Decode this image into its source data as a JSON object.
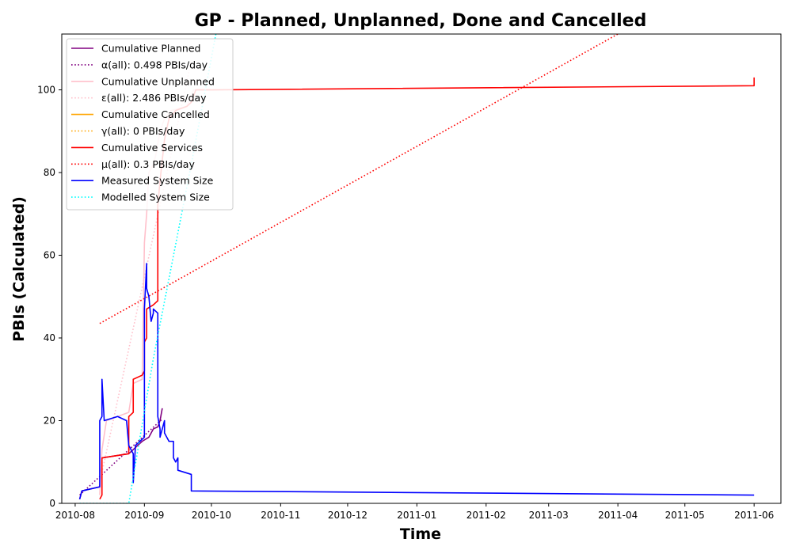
{
  "chart_data": {
    "type": "line",
    "title": "GP - Planned, Unplanned, Done  and Cancelled",
    "xlabel": "Time",
    "ylabel": "PBIs (Calculated)",
    "xlim": [
      "2010-07-26",
      "2011-06-13"
    ],
    "ylim": [
      0,
      113.5
    ],
    "x_ticks": [
      "2010-08",
      "2010-09",
      "2010-10",
      "2010-11",
      "2010-12",
      "2011-01",
      "2011-02",
      "2011-03",
      "2011-04",
      "2011-05",
      "2011-06"
    ],
    "y_ticks": [
      0,
      20,
      40,
      60,
      80,
      100
    ],
    "grid": false,
    "legend_position": "top-left",
    "series": [
      {
        "name": "Cumulative Planned",
        "style": "solid",
        "color": "#800080",
        "points": [
          [
            "2010-08-03",
            1
          ],
          [
            "2010-08-04",
            3
          ],
          [
            "2010-08-12",
            4
          ],
          [
            "2010-08-13",
            11
          ],
          [
            "2010-08-25",
            12
          ],
          [
            "2010-08-27",
            13
          ],
          [
            "2010-08-29",
            14
          ],
          [
            "2010-08-31",
            15
          ],
          [
            "2010-09-03",
            16
          ],
          [
            "2010-09-05",
            18
          ],
          [
            "2010-09-07",
            18.5
          ],
          [
            "2010-09-08",
            20
          ],
          [
            "2010-09-09",
            23
          ]
        ]
      },
      {
        "name": "α(all): 0.498 PBIs/day",
        "style": "dotted",
        "color": "#800080",
        "points": [
          [
            "2010-08-03",
            2
          ],
          [
            "2010-09-09",
            20.4
          ]
        ]
      },
      {
        "name": "Cumulative Unplanned",
        "style": "solid",
        "color": "#ffc0cb",
        "points": [
          [
            "2010-08-12",
            2
          ],
          [
            "2010-08-13",
            13
          ],
          [
            "2010-08-15",
            20
          ],
          [
            "2010-08-20",
            21
          ],
          [
            "2010-08-25",
            22
          ],
          [
            "2010-08-27",
            29
          ],
          [
            "2010-08-31",
            30
          ],
          [
            "2010-09-01",
            63
          ],
          [
            "2010-09-02",
            70
          ],
          [
            "2010-09-03",
            80
          ],
          [
            "2010-09-05",
            82
          ],
          [
            "2010-09-06",
            84
          ],
          [
            "2010-09-08",
            90
          ],
          [
            "2010-09-10",
            93
          ],
          [
            "2010-09-13",
            95
          ],
          [
            "2010-09-20",
            96
          ],
          [
            "2010-09-23",
            100
          ],
          [
            "2010-10-01",
            100
          ]
        ]
      },
      {
        "name": "ε(all): 2.486 PBIs/day",
        "style": "dotted",
        "color": "#ffc0cb",
        "points": [
          [
            "2010-08-12",
            5
          ],
          [
            "2010-09-22",
            107
          ]
        ]
      },
      {
        "name": "Cumulative Cancelled",
        "style": "solid",
        "color": "#ffa500",
        "points": []
      },
      {
        "name": "γ(all): 0 PBIs/day",
        "style": "dotted",
        "color": "#ffa500",
        "points": []
      },
      {
        "name": "Cumulative Services",
        "style": "solid",
        "color": "#ff0000",
        "points": [
          [
            "2010-08-12",
            1
          ],
          [
            "2010-08-13",
            2
          ],
          [
            "2010-08-13",
            11
          ],
          [
            "2010-08-25",
            12
          ],
          [
            "2010-08-25",
            21
          ],
          [
            "2010-08-27",
            22
          ],
          [
            "2010-08-27",
            30
          ],
          [
            "2010-08-31",
            31
          ],
          [
            "2010-09-01",
            32
          ],
          [
            "2010-09-01",
            39
          ],
          [
            "2010-09-02",
            40
          ],
          [
            "2010-09-02",
            47
          ],
          [
            "2010-09-05",
            48
          ],
          [
            "2010-09-07",
            49
          ],
          [
            "2010-09-07",
            72
          ],
          [
            "2010-09-08",
            78
          ],
          [
            "2010-09-10",
            88
          ],
          [
            "2010-09-12",
            93
          ],
          [
            "2010-09-15",
            95
          ],
          [
            "2010-09-20",
            96
          ],
          [
            "2010-09-22",
            97
          ],
          [
            "2010-09-24",
            100
          ],
          [
            "2010-10-01",
            100
          ],
          [
            "2011-06-01",
            101
          ],
          [
            "2011-06-01",
            103
          ]
        ]
      },
      {
        "name": "μ(all): 0.3 PBIs/day",
        "style": "dotted",
        "color": "#ff0000",
        "points": [
          [
            "2010-08-12",
            43.5
          ],
          [
            "2011-04-01",
            113.5
          ]
        ]
      },
      {
        "name": "Measured System Size",
        "style": "solid",
        "color": "#0000ff",
        "points": [
          [
            "2010-08-03",
            1
          ],
          [
            "2010-08-04",
            3
          ],
          [
            "2010-08-12",
            4
          ],
          [
            "2010-08-12",
            20
          ],
          [
            "2010-08-13",
            21
          ],
          [
            "2010-08-13",
            27
          ],
          [
            "2010-08-13",
            30
          ],
          [
            "2010-08-14",
            20
          ],
          [
            "2010-08-20",
            21
          ],
          [
            "2010-08-24",
            20
          ],
          [
            "2010-08-25",
            14
          ],
          [
            "2010-08-26",
            13
          ],
          [
            "2010-08-27",
            12
          ],
          [
            "2010-08-27",
            5
          ],
          [
            "2010-08-28",
            14
          ],
          [
            "2010-08-30",
            15
          ],
          [
            "2010-09-01",
            16
          ],
          [
            "2010-09-01",
            47
          ],
          [
            "2010-09-02",
            58
          ],
          [
            "2010-09-02",
            52
          ],
          [
            "2010-09-03",
            50
          ],
          [
            "2010-09-04",
            44
          ],
          [
            "2010-09-05",
            46
          ],
          [
            "2010-09-05",
            47
          ],
          [
            "2010-09-07",
            46
          ],
          [
            "2010-09-07",
            21
          ],
          [
            "2010-09-08",
            18
          ],
          [
            "2010-09-08",
            16
          ],
          [
            "2010-09-09",
            18
          ],
          [
            "2010-09-10",
            20
          ],
          [
            "2010-09-10",
            17
          ],
          [
            "2010-09-12",
            15
          ],
          [
            "2010-09-14",
            15
          ],
          [
            "2010-09-14",
            11
          ],
          [
            "2010-09-15",
            10
          ],
          [
            "2010-09-16",
            11
          ],
          [
            "2010-09-16",
            8
          ],
          [
            "2010-09-22",
            7
          ],
          [
            "2010-09-22",
            3
          ],
          [
            "2011-06-01",
            2
          ]
        ]
      },
      {
        "name": "Modelled System Size",
        "style": "dotted",
        "color": "#00ffff",
        "points": [
          [
            "2010-08-03",
            0
          ],
          [
            "2010-08-25",
            0
          ],
          [
            "2010-09-05",
            35
          ],
          [
            "2010-09-22",
            82
          ],
          [
            "2010-10-03",
            113.5
          ]
        ]
      }
    ]
  }
}
